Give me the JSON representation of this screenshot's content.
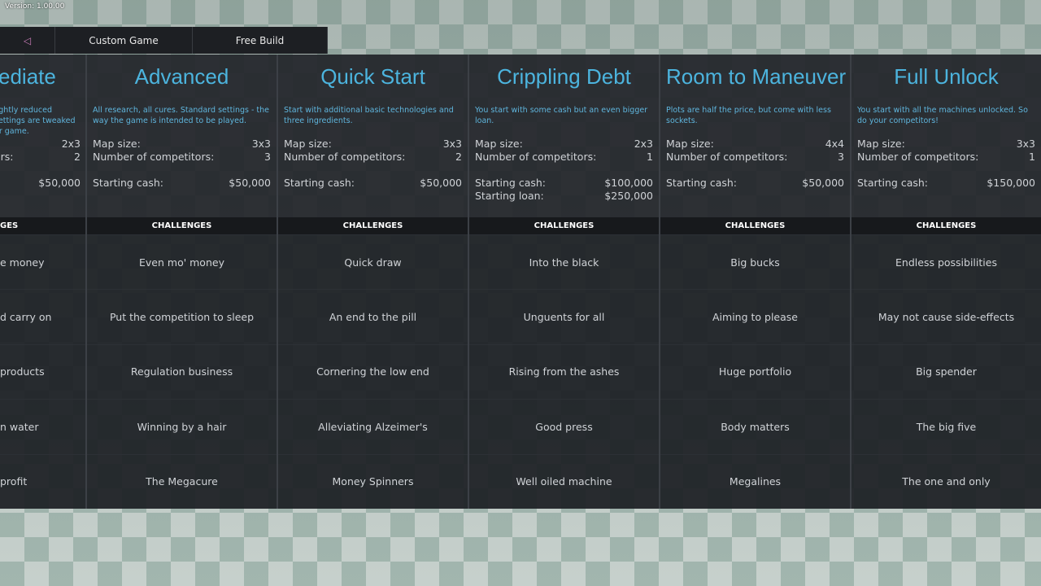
{
  "version": "Version: 1.00.00",
  "topbar": {
    "back_icon": "triangle-left-icon",
    "custom_game": "Custom Game",
    "free_build": "Free Build"
  },
  "labels": {
    "map_size": "Map size:",
    "competitors": "Number of competitors:",
    "starting_cash": "Starting cash:",
    "starting_loan": "Starting loan:",
    "challenges": "CHALLENGES"
  },
  "partial": {
    "title": "ediate",
    "desc": [
      "lightly reduced",
      "settings are tweaked",
      "er game."
    ],
    "map_size": "2x3",
    "competitors_label": "ors:",
    "competitors": "2",
    "cash": "$50,000",
    "challenges_header": "GES",
    "challenges": [
      "e money",
      "d carry on",
      "products",
      "n water",
      "profit"
    ]
  },
  "modes": [
    {
      "title": "Advanced",
      "desc": "All research, all cures. Standard settings - the way the game is intended to be played.",
      "map_size": "3x3",
      "competitors": "3",
      "cash": "$50,000",
      "challenges": [
        "Even mo' money",
        "Put the competition to sleep",
        "Regulation business",
        "Winning by a hair",
        "The Megacure"
      ]
    },
    {
      "title": "Quick Start",
      "desc": "Start with additional basic technologies and three ingredients.",
      "map_size": "3x3",
      "competitors": "2",
      "cash": "$50,000",
      "challenges": [
        "Quick draw",
        "An end to the pill",
        "Cornering the low end",
        "Alleviating Alzeimer's",
        "Money Spinners"
      ]
    },
    {
      "title": "Crippling Debt",
      "desc": "You start with some cash but an even bigger loan.",
      "map_size": "2x3",
      "competitors": "1",
      "cash": "$100,000",
      "loan": "$250,000",
      "challenges": [
        "Into the black",
        "Unguents for all",
        "Rising from the ashes",
        "Good press",
        "Well oiled machine"
      ]
    },
    {
      "title": "Room to Maneuver",
      "desc": "Plots are half the price, but come with less sockets.",
      "map_size": "4x4",
      "competitors": "3",
      "cash": "$50,000",
      "challenges": [
        "Big bucks",
        "Aiming to please",
        "Huge portfolio",
        "Body matters",
        "Megalines"
      ]
    },
    {
      "title": "Full Unlock",
      "desc": "You start with all the machines unlocked. So do your competitors!",
      "map_size": "3x3",
      "competitors": "1",
      "cash": "$150,000",
      "challenges": [
        "Endless possibilities",
        "May not cause side-effects",
        "Big spender",
        "The big five",
        "The one and only"
      ]
    }
  ]
}
